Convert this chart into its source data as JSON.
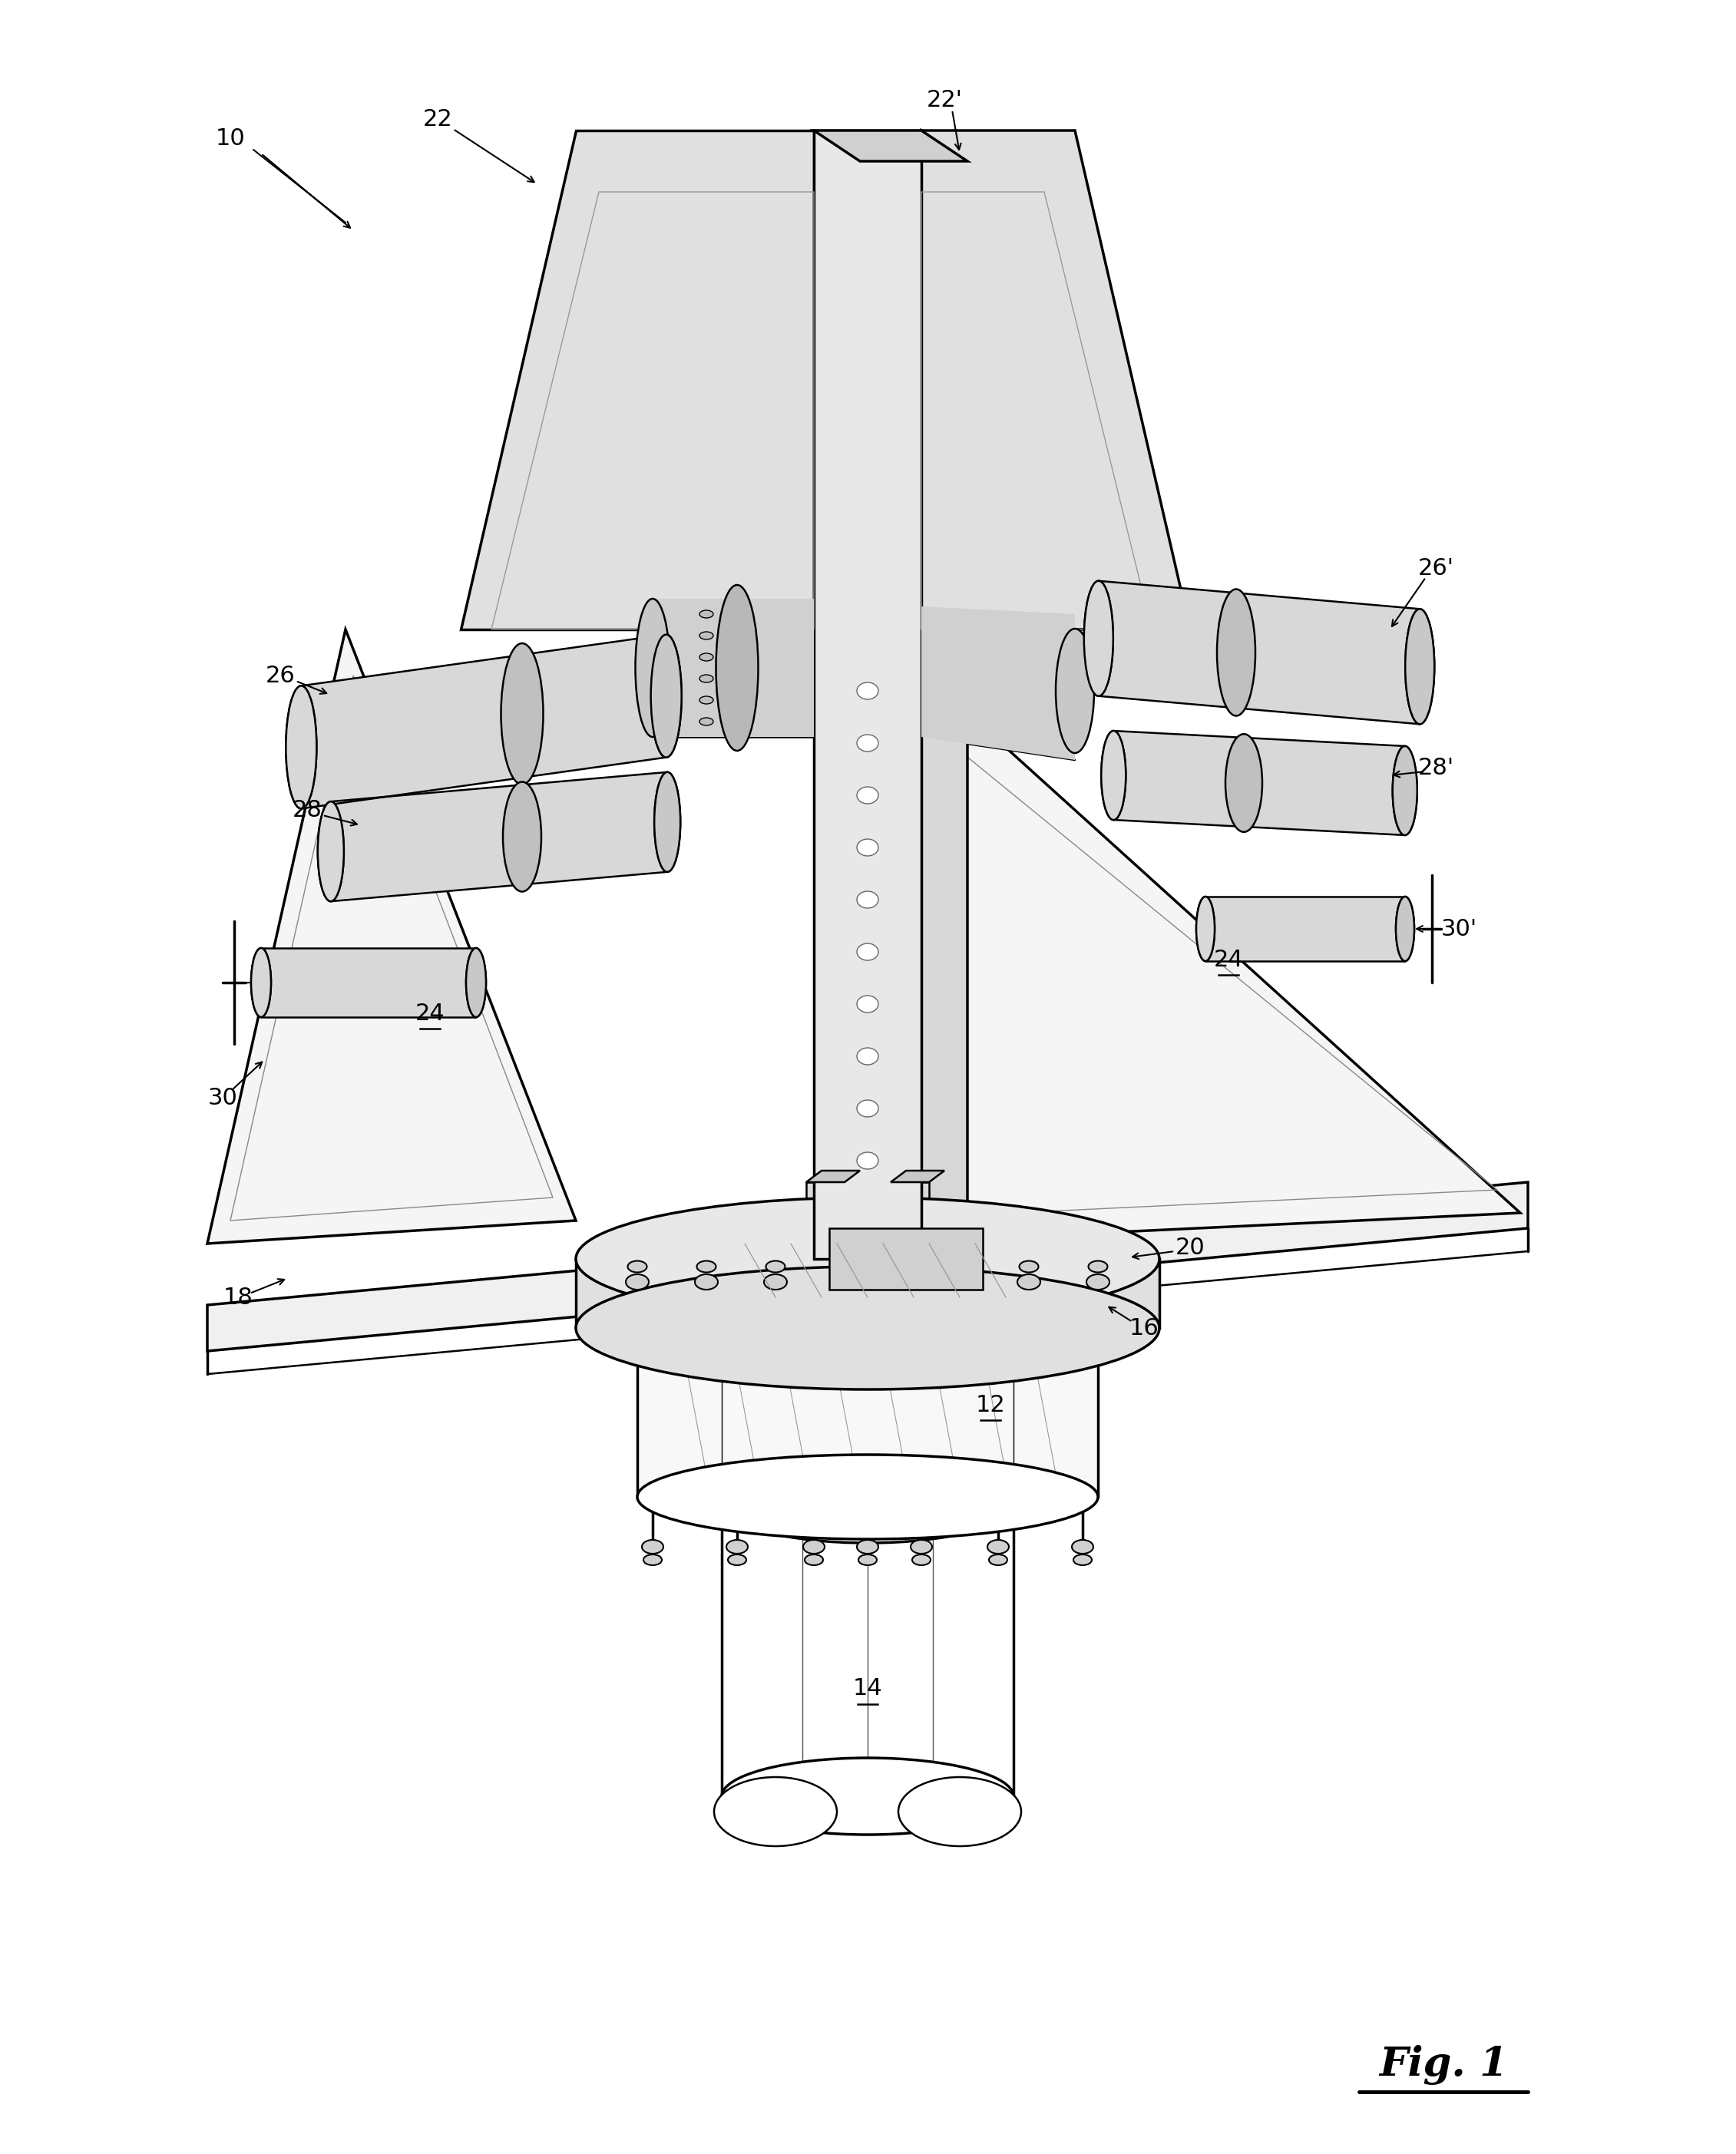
{
  "bg": "#ffffff",
  "lc": "#000000",
  "fig_label": "Fig. 1",
  "label_fs": 22,
  "fig_fs": 38,
  "lw": 1.8,
  "lw_thick": 2.5,
  "lw_thin": 1.0
}
